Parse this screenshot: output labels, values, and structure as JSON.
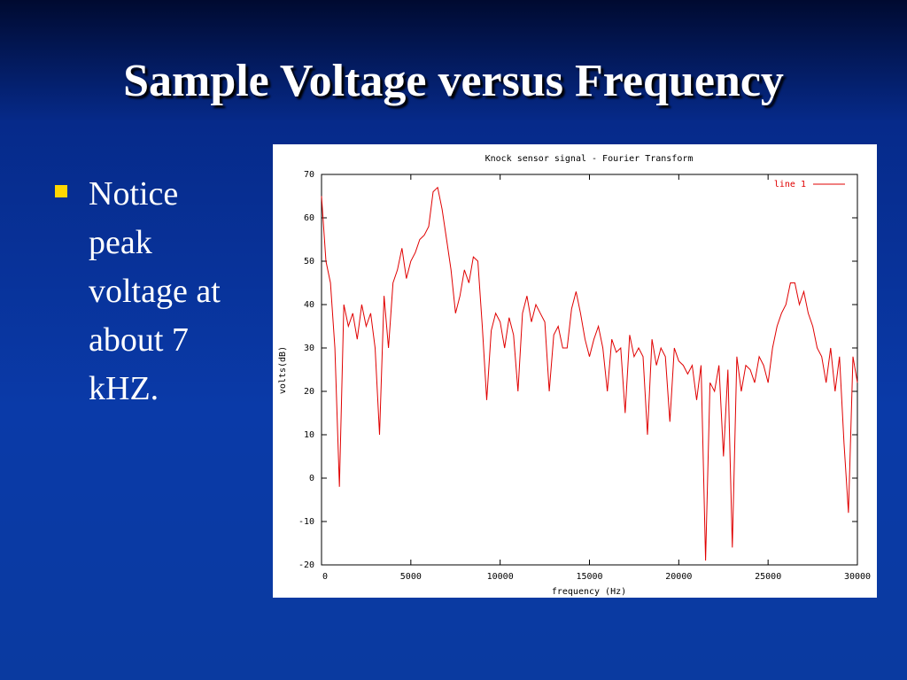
{
  "slide": {
    "title": "Sample Voltage versus Frequency",
    "bullet": "Notice peak voltage at about 7 kHZ."
  },
  "chart_data": {
    "type": "line",
    "title": "Knock sensor signal - Fourier Transform",
    "xlabel": "frequency (Hz)",
    "ylabel": "volts(dB)",
    "xlim": [
      0,
      30000
    ],
    "ylim": [
      -20,
      70
    ],
    "xticks": [
      0,
      5000,
      10000,
      15000,
      20000,
      25000,
      30000
    ],
    "yticks": [
      -20,
      -10,
      0,
      10,
      20,
      30,
      40,
      50,
      60,
      70
    ],
    "legend": "top-right",
    "x": [
      0,
      250,
      500,
      750,
      1000,
      1250,
      1500,
      1750,
      2000,
      2250,
      2500,
      2750,
      3000,
      3250,
      3500,
      3750,
      4000,
      4250,
      4500,
      4750,
      5000,
      5250,
      5500,
      5750,
      6000,
      6250,
      6500,
      6750,
      7000,
      7250,
      7500,
      7750,
      8000,
      8250,
      8500,
      8750,
      9000,
      9250,
      9500,
      9750,
      10000,
      10250,
      10500,
      10750,
      11000,
      11250,
      11500,
      11750,
      12000,
      12250,
      12500,
      12750,
      13000,
      13250,
      13500,
      13750,
      14000,
      14250,
      14500,
      14750,
      15000,
      15250,
      15500,
      15750,
      16000,
      16250,
      16500,
      16750,
      17000,
      17250,
      17500,
      17750,
      18000,
      18250,
      18500,
      18750,
      19000,
      19250,
      19500,
      19750,
      20000,
      20250,
      20500,
      20750,
      21000,
      21250,
      21500,
      21750,
      22000,
      22250,
      22500,
      22750,
      23000,
      23250,
      23500,
      23750,
      24000,
      24250,
      24500,
      24750,
      25000,
      25250,
      25500,
      25750,
      26000,
      26250,
      26500,
      26750,
      27000,
      27250,
      27500,
      27750,
      28000,
      28250,
      28500,
      28750,
      29000,
      29250,
      29500,
      29750,
      30000
    ],
    "series": [
      {
        "name": "line 1",
        "color": "#e00000",
        "values": [
          65,
          50,
          45,
          30,
          -2,
          40,
          35,
          38,
          32,
          40,
          35,
          38,
          30,
          10,
          42,
          30,
          45,
          48,
          53,
          46,
          50,
          52,
          55,
          56,
          58,
          66,
          67,
          62,
          55,
          48,
          38,
          42,
          48,
          45,
          51,
          50,
          35,
          18,
          34,
          38,
          36,
          30,
          37,
          33,
          20,
          38,
          42,
          36,
          40,
          38,
          36,
          20,
          33,
          35,
          30,
          30,
          39,
          43,
          38,
          32,
          28,
          32,
          35,
          30,
          20,
          32,
          29,
          30,
          15,
          33,
          28,
          30,
          28,
          10,
          32,
          26,
          30,
          28,
          13,
          30,
          27,
          26,
          24,
          26,
          18,
          26,
          -19,
          22,
          20,
          26,
          5,
          25,
          -16,
          28,
          20,
          26,
          25,
          22,
          28,
          26,
          22,
          30,
          35,
          38,
          40,
          45,
          45,
          40,
          43,
          38,
          35,
          30,
          28,
          22,
          30,
          20,
          28,
          8,
          -8,
          28,
          22
        ]
      }
    ]
  }
}
